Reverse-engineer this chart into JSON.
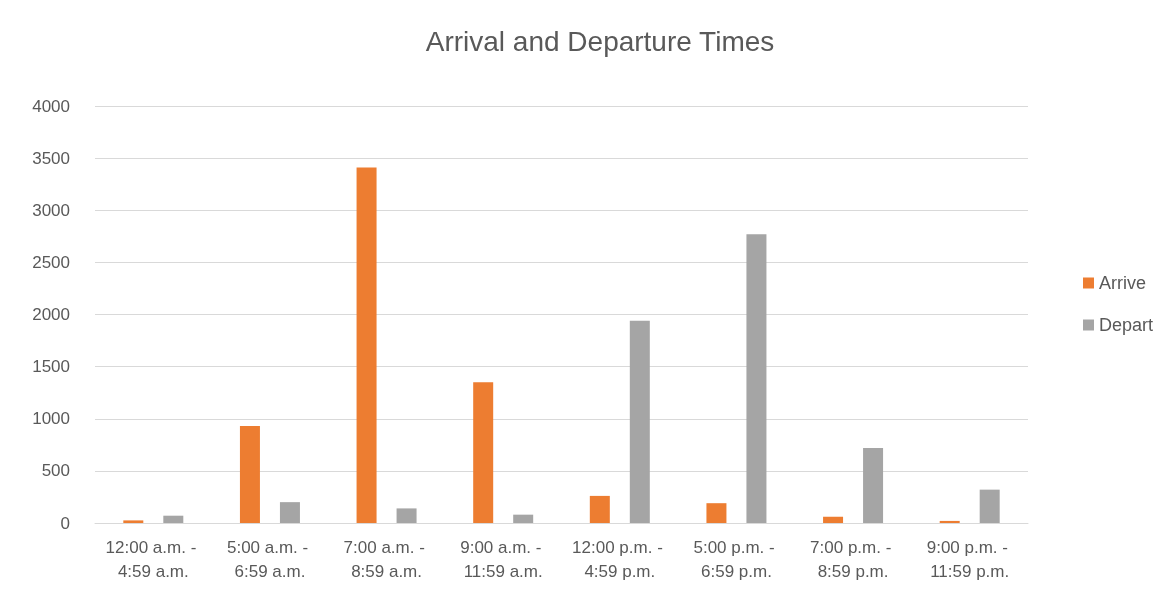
{
  "chart_data": {
    "type": "bar",
    "title": "Arrival and Departure Times",
    "categories": [
      "12:00 a.m. - 4:59 a.m.",
      "5:00 a.m. - 6:59 a.m.",
      "7:00 a.m. - 8:59 a.m.",
      "9:00 a.m. - 11:59 a.m.",
      "12:00 p.m. - 4:59 p.m.",
      "5:00 p.m. - 6:59 p.m.",
      "7:00 p.m. - 8:59 p.m.",
      "9:00 p.m. - 11:59 p.m."
    ],
    "series": [
      {
        "name": "Arrive",
        "color": "#ed7d31",
        "values": [
          25,
          930,
          3410,
          1350,
          260,
          190,
          60,
          20
        ]
      },
      {
        "name": "Depart",
        "color": "#a5a5a5",
        "values": [
          70,
          200,
          140,
          80,
          1940,
          2770,
          720,
          320
        ]
      }
    ],
    "ylim": [
      0,
      4000
    ],
    "yticks": [
      0,
      500,
      1000,
      1500,
      2000,
      2500,
      3000,
      3500,
      4000
    ],
    "grid": "y",
    "legend": "right"
  }
}
